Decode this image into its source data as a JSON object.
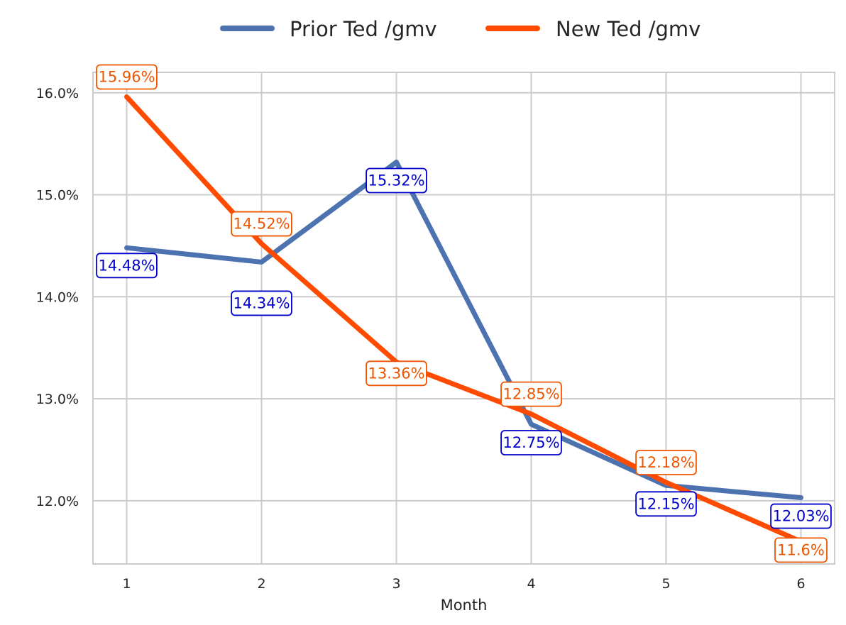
{
  "chart_data": {
    "type": "line",
    "title": "",
    "xlabel": "Month",
    "ylabel": "",
    "x": [
      1,
      2,
      3,
      4,
      5,
      6
    ],
    "x_tick_labels": [
      "1",
      "2",
      "3",
      "4",
      "5",
      "6"
    ],
    "y_ticks": [
      12.0,
      13.0,
      14.0,
      15.0,
      16.0
    ],
    "y_tick_labels": [
      "12.0%",
      "13.0%",
      "14.0%",
      "15.0%",
      "16.0%"
    ],
    "xlim": [
      0.75,
      6.25
    ],
    "ylim": [
      11.38,
      16.2
    ],
    "grid": true,
    "legend_position": "top-center",
    "series": [
      {
        "name": "Prior Ted /gmv",
        "color": "#4c72b0",
        "label_color": "#0000cc",
        "values": [
          14.48,
          14.34,
          15.32,
          12.75,
          12.15,
          12.03
        ],
        "labels": [
          "14.48%",
          "14.34%",
          "15.32%",
          "12.75%",
          "12.15%",
          "12.03%"
        ]
      },
      {
        "name": "New Ted /gmv",
        "color": "#ff4b00",
        "label_color": "#ee5500",
        "values": [
          15.96,
          14.52,
          13.36,
          12.85,
          12.18,
          11.6
        ],
        "labels": [
          "15.96%",
          "14.52%",
          "13.36%",
          "12.85%",
          "12.18%",
          "11.6%"
        ]
      }
    ]
  }
}
